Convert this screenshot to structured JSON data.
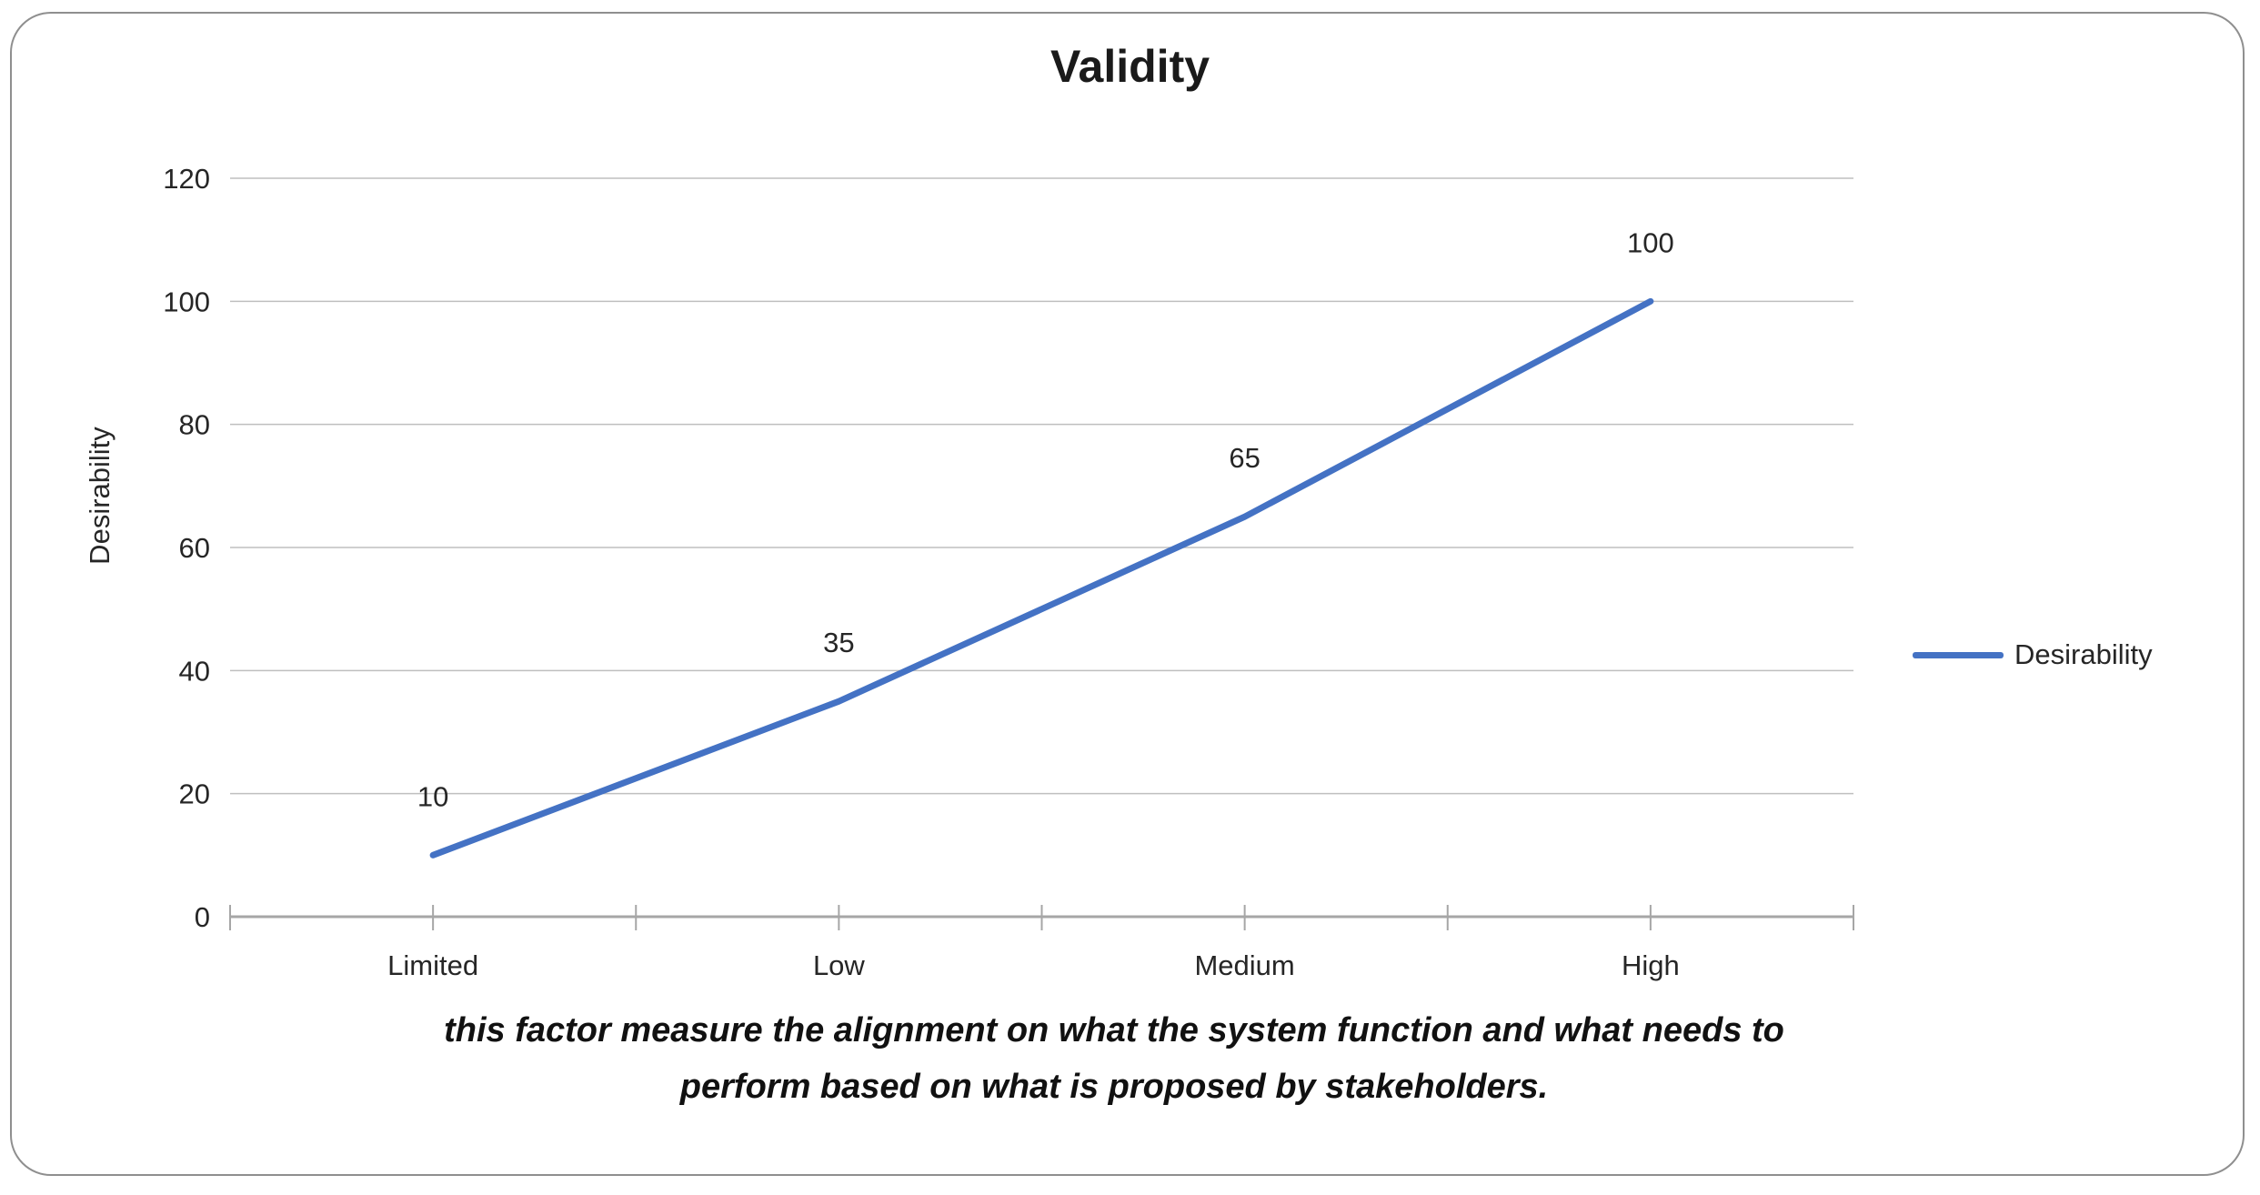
{
  "chart_data": {
    "type": "line",
    "title": "Validity",
    "categories": [
      "Limited",
      "Low",
      "Medium",
      "High"
    ],
    "series": [
      {
        "name": "Desirability",
        "values": [
          10,
          35,
          65,
          100
        ]
      }
    ],
    "data_labels": [
      10,
      35,
      65,
      100
    ],
    "xlabel": "",
    "ylabel": "Desirability",
    "ylim": [
      0,
      120
    ],
    "yticks": [
      0,
      20,
      40,
      60,
      80,
      100,
      120
    ],
    "grid": true,
    "legend_position": "right",
    "legend_entries": [
      "Desirability"
    ]
  },
  "caption_lines": [
    "this factor measure the alignment on what the system function and what needs to",
    "perform based on what is proposed by stakeholders."
  ],
  "colors": {
    "line": "#4472C4",
    "gridline": "#BFBFBF",
    "axis": "#A6A6A6",
    "text": "#262626",
    "border": "#8F8F8F"
  }
}
